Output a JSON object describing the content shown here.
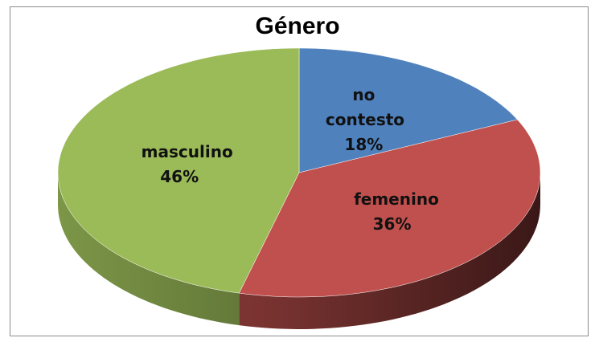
{
  "chart_data": {
    "type": "pie",
    "title": "Género",
    "categories": [
      "no contesto",
      "femenino",
      "masculino"
    ],
    "values": [
      18,
      36,
      46
    ],
    "value_labels": [
      "18%",
      "36%",
      "46%"
    ],
    "colors": [
      "#4f81bd",
      "#c0504d",
      "#9bbb59"
    ]
  }
}
